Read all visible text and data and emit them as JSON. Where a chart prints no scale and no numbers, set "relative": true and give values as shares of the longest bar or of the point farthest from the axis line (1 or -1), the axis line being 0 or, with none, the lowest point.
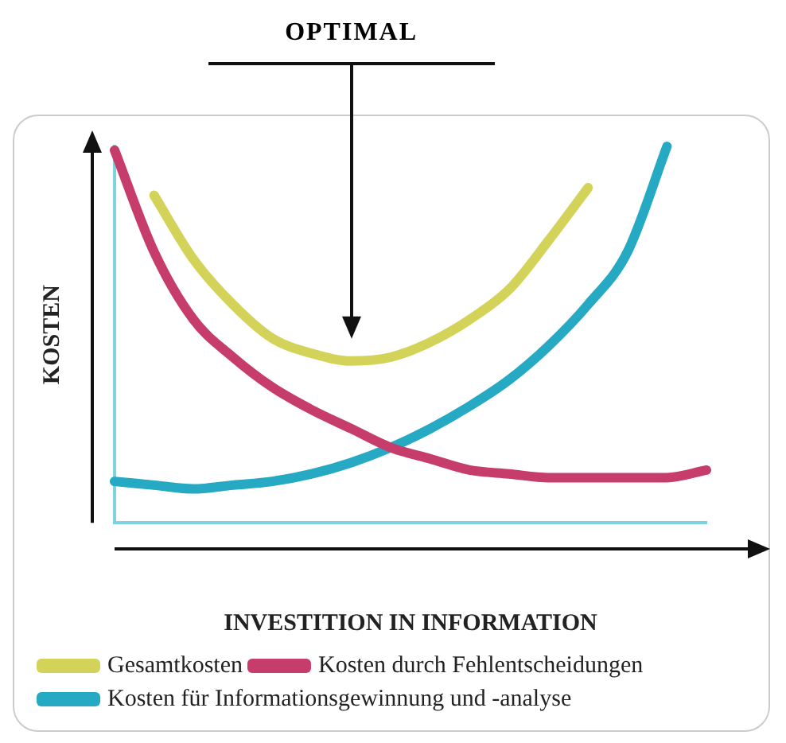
{
  "chart_data": {
    "type": "line",
    "relative": true,
    "xlabel": "INVESTITION IN INFORMATION",
    "ylabel": "KOSTEN",
    "annotations": [
      "OPTIMAL"
    ],
    "legend": "bottom",
    "marker": "none",
    "line_style": "solid",
    "grid": false,
    "categories": [
      null,
      null,
      null,
      null,
      null,
      null,
      null,
      null,
      null,
      null,
      null,
      null,
      null,
      null,
      null,
      null
    ],
    "series": [
      {
        "name": "Gesamtkosten",
        "color": "#d3d35a",
        "values": [
          null,
          0.87,
          0.7,
          0.58,
          0.49,
          0.45,
          0.43,
          0.44,
          0.48,
          0.54,
          0.62,
          0.75,
          0.89,
          null,
          null,
          null
        ]
      },
      {
        "name": "Kosten durch Fehlentscheidungen",
        "color": "#c63c6a",
        "values": [
          0.99,
          0.72,
          0.54,
          0.44,
          0.36,
          0.3,
          0.25,
          0.2,
          0.17,
          0.14,
          0.13,
          0.12,
          0.12,
          0.12,
          0.12,
          0.14
        ]
      },
      {
        "name": "Kosten für Informationsgewinnung und -analyse",
        "color": "#26a9c2",
        "values": [
          0.11,
          0.1,
          0.09,
          0.1,
          0.11,
          0.13,
          0.16,
          0.2,
          0.25,
          0.31,
          0.38,
          0.47,
          0.58,
          0.72,
          1.0,
          null
        ]
      }
    ]
  }
}
